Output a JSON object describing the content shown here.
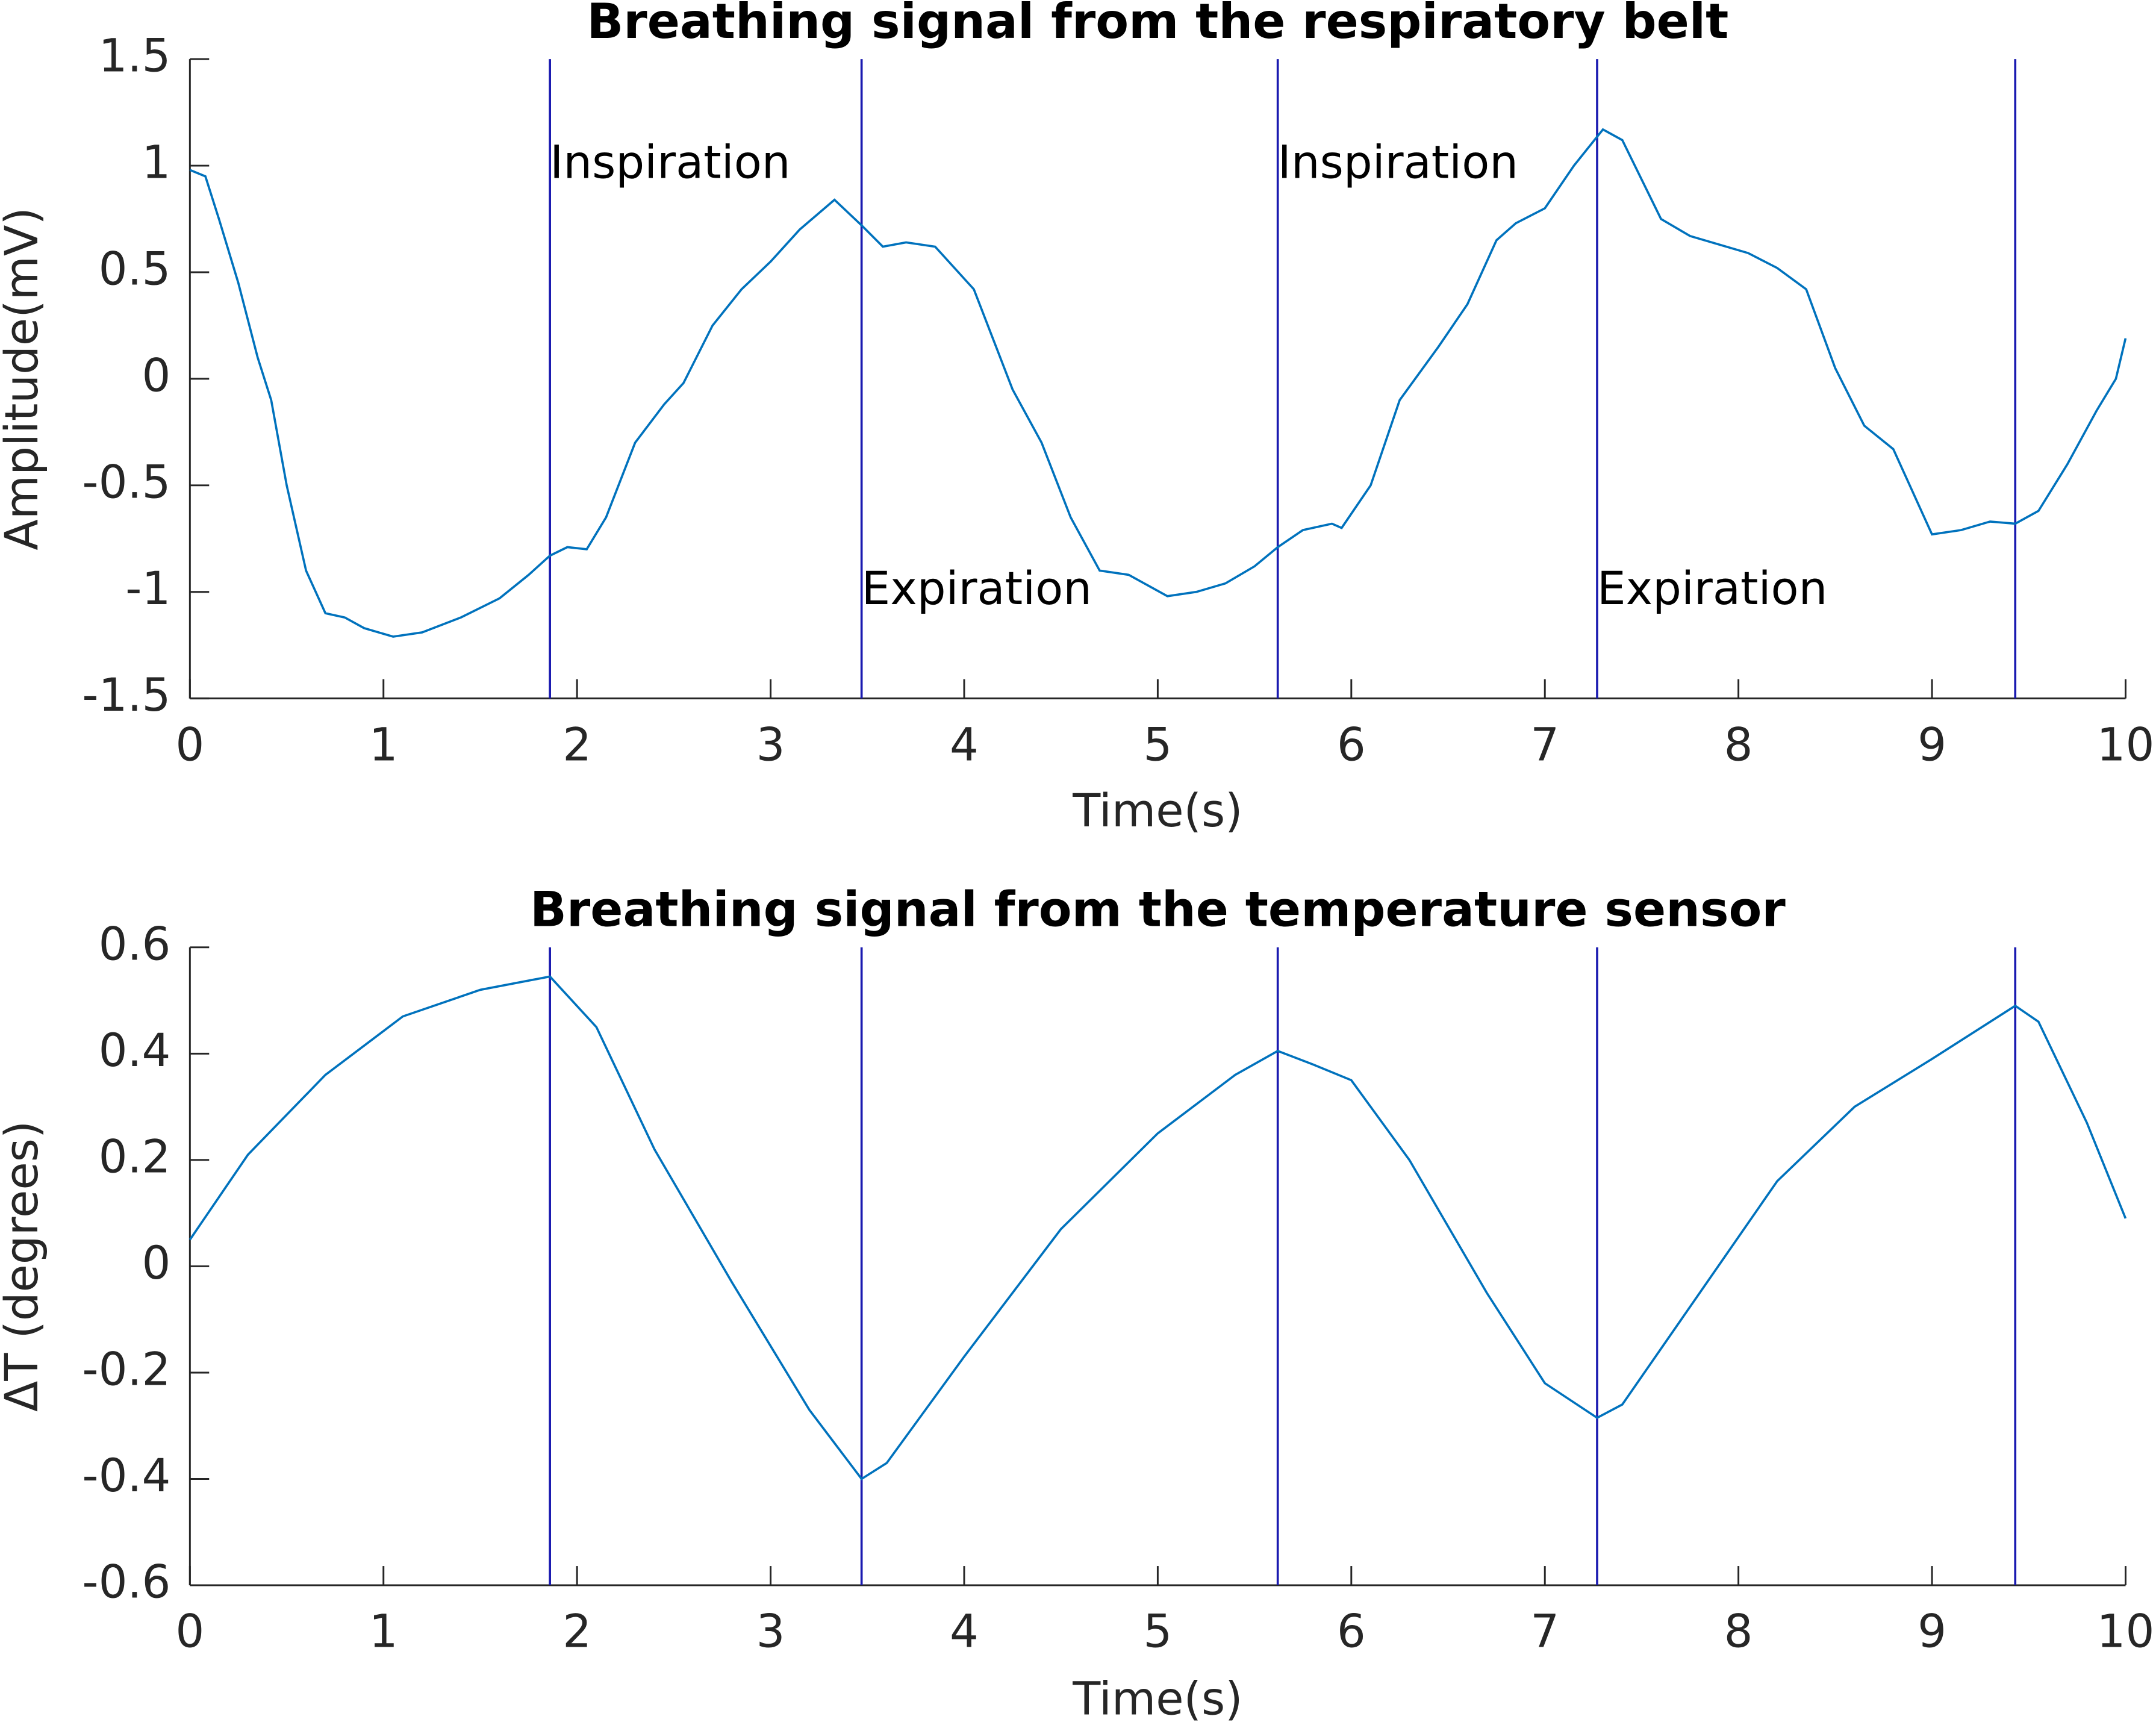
{
  "chart_data": [
    {
      "type": "line",
      "title": "Breathing signal from the respiratory belt",
      "xlabel": "Time(s)",
      "ylabel": "Amplitude(mV)",
      "x": [
        0,
        0.08,
        0.15,
        0.25,
        0.35,
        0.42,
        0.5,
        0.6,
        0.7,
        0.8,
        0.9,
        1.05,
        1.2,
        1.4,
        1.6,
        1.75,
        1.86,
        1.95,
        2.05,
        2.15,
        2.3,
        2.45,
        2.55,
        2.7,
        2.85,
        3.0,
        3.15,
        3.33,
        3.47,
        3.58,
        3.7,
        3.85,
        4.05,
        4.25,
        4.4,
        4.55,
        4.7,
        4.85,
        5.05,
        5.2,
        5.35,
        5.5,
        5.62,
        5.75,
        5.9,
        5.95,
        6.1,
        6.25,
        6.45,
        6.6,
        6.75,
        6.85,
        7.0,
        7.15,
        7.3,
        7.4,
        7.6,
        7.75,
        7.9,
        8.05,
        8.2,
        8.35,
        8.5,
        8.65,
        8.8,
        9.0,
        9.15,
        9.3,
        9.43,
        9.55,
        9.7,
        9.85,
        9.95,
        10.0
      ],
      "values": [
        0.98,
        0.95,
        0.75,
        0.45,
        0.1,
        -0.1,
        -0.5,
        -0.9,
        -1.1,
        -1.12,
        -1.17,
        -1.21,
        -1.19,
        -1.12,
        -1.03,
        -0.92,
        -0.83,
        -0.79,
        -0.8,
        -0.65,
        -0.3,
        -0.12,
        -0.02,
        0.25,
        0.42,
        0.55,
        0.7,
        0.84,
        0.72,
        0.62,
        0.64,
        0.62,
        0.42,
        -0.05,
        -0.3,
        -0.65,
        -0.9,
        -0.92,
        -1.02,
        -1.0,
        -0.96,
        -0.88,
        -0.79,
        -0.71,
        -0.68,
        -0.7,
        -0.5,
        -0.1,
        0.15,
        0.35,
        0.65,
        0.73,
        0.8,
        1.0,
        1.17,
        1.12,
        0.75,
        0.67,
        0.63,
        0.59,
        0.52,
        0.42,
        0.05,
        -0.22,
        -0.33,
        -0.73,
        -0.71,
        -0.67,
        -0.68,
        -0.62,
        -0.4,
        -0.15,
        0.0,
        0.19
      ],
      "color": "#0072bd",
      "vline_color": "#1a1ab0",
      "vlines": [
        1.86,
        3.47,
        5.62,
        7.27,
        9.43
      ],
      "annotations": [
        {
          "text": "Inspiration",
          "x": 1.86,
          "y": 1
        },
        {
          "text": "Expiration",
          "x": 3.47,
          "y": -1
        },
        {
          "text": "Inspiration",
          "x": 5.62,
          "y": 1
        },
        {
          "text": "Expiration",
          "x": 7.27,
          "y": -1
        }
      ],
      "xlim": [
        0,
        10
      ],
      "xticks": [
        0,
        1,
        2,
        3,
        4,
        5,
        6,
        7,
        8,
        9,
        10
      ],
      "ylim": [
        -1.5,
        1.5
      ],
      "yticks": [
        -1.5,
        -1,
        -0.5,
        0,
        0.5,
        1,
        1.5
      ],
      "grid": false
    },
    {
      "type": "line",
      "title": "Breathing signal from the temperature sensor",
      "xlabel": "Time(s)",
      "ylabel": "ΔT (degrees)",
      "x": [
        0,
        0.3,
        0.7,
        1.1,
        1.5,
        1.86,
        2.1,
        2.4,
        2.8,
        3.2,
        3.47,
        3.6,
        4.0,
        4.5,
        5.0,
        5.4,
        5.62,
        5.8,
        6.0,
        6.3,
        6.7,
        7.0,
        7.27,
        7.4,
        7.8,
        8.2,
        8.6,
        9.0,
        9.43,
        9.55,
        9.8,
        10.0
      ],
      "values": [
        0.05,
        0.21,
        0.36,
        0.47,
        0.52,
        0.545,
        0.45,
        0.22,
        -0.03,
        -0.27,
        -0.4,
        -0.37,
        -0.17,
        0.07,
        0.25,
        0.36,
        0.405,
        0.38,
        0.35,
        0.2,
        -0.05,
        -0.22,
        -0.285,
        -0.26,
        -0.05,
        0.16,
        0.3,
        0.39,
        0.49,
        0.46,
        0.27,
        0.09
      ],
      "color": "#0072bd",
      "vline_color": "#1a1ab0",
      "vlines": [
        1.86,
        3.47,
        5.62,
        7.27,
        9.43
      ],
      "xlim": [
        0,
        10
      ],
      "xticks": [
        0,
        1,
        2,
        3,
        4,
        5,
        6,
        7,
        8,
        9,
        10
      ],
      "ylim": [
        -0.6,
        0.6
      ],
      "yticks": [
        -0.6,
        -0.4,
        -0.2,
        0,
        0.2,
        0.4,
        0.6
      ],
      "grid": false
    }
  ]
}
